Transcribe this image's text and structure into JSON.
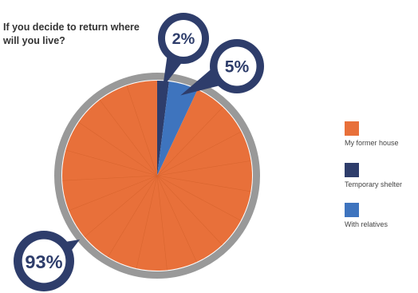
{
  "chart_data": {
    "type": "pie",
    "title": "If you decide to return where will you live?",
    "categories": [
      "My former house",
      "Temporary shelter",
      "With relatives"
    ],
    "values": [
      93,
      2,
      5
    ],
    "value_labels": [
      "93%",
      "2%",
      "5%"
    ],
    "colors": {
      "My former house": "#E8703A",
      "Temporary shelter": "#2E3D6B",
      "With relatives": "#3E74BE"
    },
    "legend_position": "right"
  },
  "theme": {
    "ring": "#999999",
    "badge": "#2E3D6B"
  },
  "legend": {
    "items": [
      {
        "label": "My former house",
        "color": "#E8703A"
      },
      {
        "label": "Temporary shelter",
        "color": "#2E3D6B"
      },
      {
        "label": "With relatives",
        "color": "#3E74BE"
      }
    ]
  }
}
